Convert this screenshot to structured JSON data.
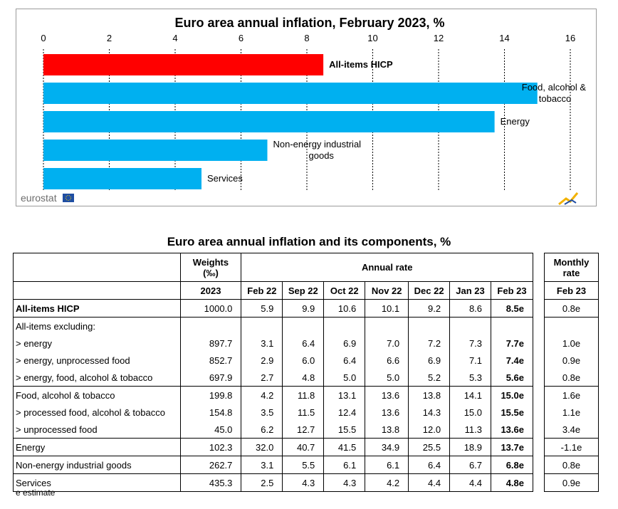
{
  "chart_data": {
    "type": "bar",
    "orientation": "horizontal",
    "title": "Euro area annual inflation, February 2023, %",
    "categories": [
      "All-items HICP",
      "Food, alcohol & tobacco",
      "Energy",
      "Non-energy industrial goods",
      "Services"
    ],
    "category_lines": [
      [
        "All-items HICP"
      ],
      [
        "Food, alcohol &",
        "tobacco"
      ],
      [
        "Energy"
      ],
      [
        "Non-energy industrial",
        "goods"
      ],
      [
        "Services"
      ]
    ],
    "values": [
      8.5,
      15.0,
      13.7,
      6.8,
      4.8
    ],
    "bar_colors": [
      "#ff0000",
      "#00b0f0",
      "#00b0f0",
      "#00b0f0",
      "#00b0f0"
    ],
    "xlim": [
      0,
      16
    ],
    "ticks": [
      "0",
      "2",
      "4",
      "6",
      "8",
      "10",
      "12",
      "14",
      "16"
    ],
    "axis_position": "top",
    "grid": true,
    "source_logo": "eurostat"
  },
  "table": {
    "title": "Euro area annual inflation and its components, %",
    "headers": {
      "weights": "Weights",
      "weights_unit": "(‰)",
      "annual_rate": "Annual rate",
      "monthly_rate": "Monthly",
      "monthly_rate2": "rate",
      "weights_year": "2023",
      "months": [
        "Feb 22",
        "Sep 22",
        "Oct 22",
        "Nov 22",
        "Dec 22",
        "Jan 23",
        "Feb 23"
      ],
      "monthly_month": "Feb 23"
    },
    "rows": [
      {
        "label": "All-items HICP",
        "weight": "1000.0",
        "values": [
          "5.9",
          "9.9",
          "10.6",
          "10.1",
          "9.2",
          "8.6",
          "8.5e"
        ],
        "monthly": "0.8e"
      },
      {
        "label": "All-items excluding:",
        "weight": "",
        "values": [
          "",
          "",
          "",
          "",
          "",
          "",
          ""
        ],
        "monthly": ""
      },
      {
        "label": "> energy",
        "weight": "897.7",
        "values": [
          "3.1",
          "6.4",
          "6.9",
          "7.0",
          "7.2",
          "7.3",
          "7.7e"
        ],
        "monthly": "1.0e"
      },
      {
        "label": "> energy, unprocessed food",
        "weight": "852.7",
        "values": [
          "2.9",
          "6.0",
          "6.4",
          "6.6",
          "6.9",
          "7.1",
          "7.4e"
        ],
        "monthly": "0.9e"
      },
      {
        "label": "> energy, food, alcohol & tobacco",
        "weight": "697.9",
        "values": [
          "2.7",
          "4.8",
          "5.0",
          "5.0",
          "5.2",
          "5.3",
          "5.6e"
        ],
        "monthly": "0.8e"
      },
      {
        "label": "Food, alcohol & tobacco",
        "weight": "199.8",
        "values": [
          "4.2",
          "11.8",
          "13.1",
          "13.6",
          "13.8",
          "14.1",
          "15.0e"
        ],
        "monthly": "1.6e"
      },
      {
        "label": "> processed food, alcohol & tobacco",
        "weight": "154.8",
        "values": [
          "3.5",
          "11.5",
          "12.4",
          "13.6",
          "14.3",
          "15.0",
          "15.5e"
        ],
        "monthly": "1.1e"
      },
      {
        "label": "> unprocessed food",
        "weight": "45.0",
        "values": [
          "6.2",
          "12.7",
          "15.5",
          "13.8",
          "12.0",
          "11.3",
          "13.6e"
        ],
        "monthly": "3.4e"
      },
      {
        "label": "Energy",
        "weight": "102.3",
        "values": [
          "32.0",
          "40.7",
          "41.5",
          "34.9",
          "25.5",
          "18.9",
          "13.7e"
        ],
        "monthly": "-1.1e"
      },
      {
        "label": "Non-energy industrial goods",
        "weight": "262.7",
        "values": [
          "3.1",
          "5.5",
          "6.1",
          "6.1",
          "6.4",
          "6.7",
          "6.8e"
        ],
        "monthly": "0.8e"
      },
      {
        "label": "Services",
        "weight": "435.3",
        "values": [
          "2.5",
          "4.3",
          "4.3",
          "4.2",
          "4.4",
          "4.4",
          "4.8e"
        ],
        "monthly": "0.9e"
      }
    ],
    "footnote": "e estimate"
  }
}
